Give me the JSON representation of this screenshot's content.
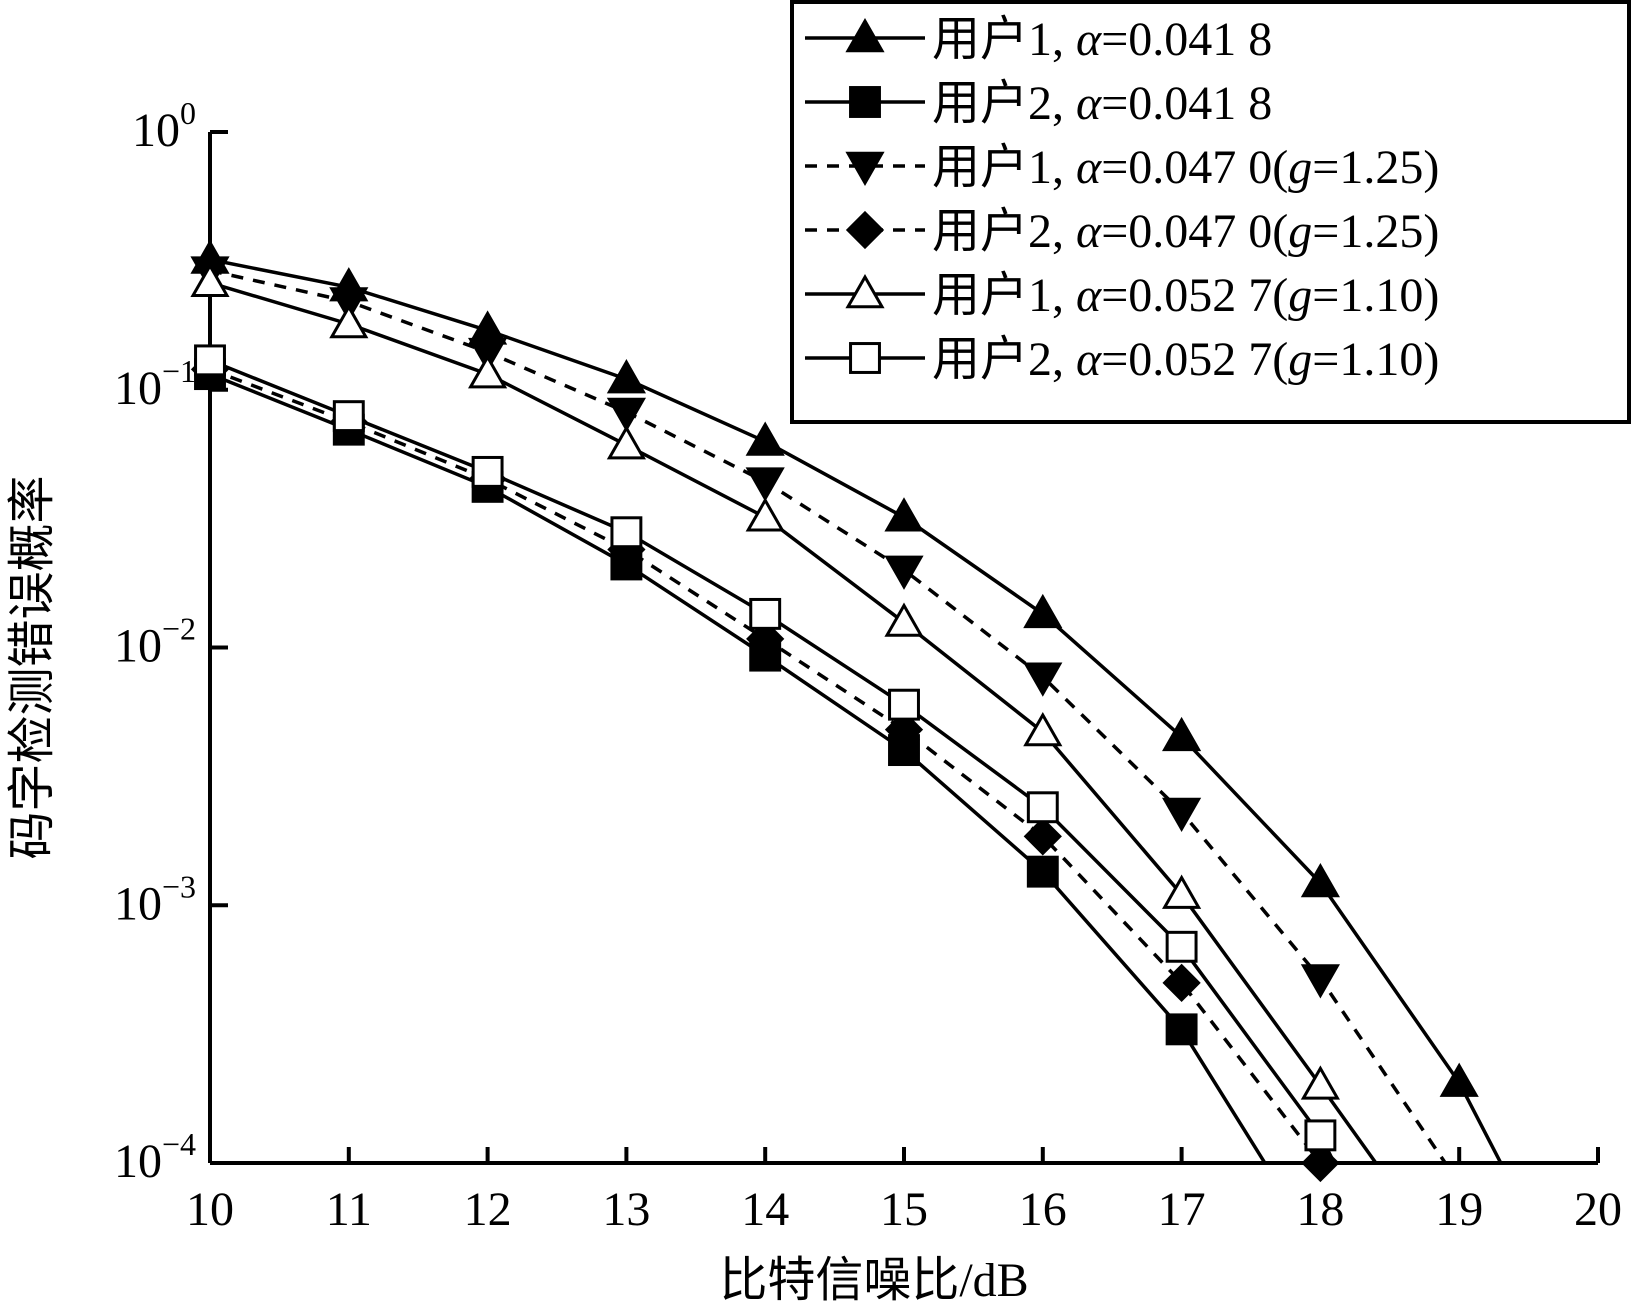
{
  "chart_data": {
    "type": "line",
    "title": "",
    "xlabel": "比特信噪比/dB",
    "ylabel": "码字检测错误概率",
    "x_ticks": [
      "10",
      "11",
      "12",
      "13",
      "14",
      "15",
      "16",
      "17",
      "18",
      "19",
      "20"
    ],
    "xlim": [
      10,
      20
    ],
    "y_scale": "log",
    "ylim": [
      0.0001,
      1
    ],
    "y_ticks": [
      {
        "value": 1,
        "base": "10",
        "exp": "0"
      },
      {
        "value": 0.1,
        "base": "10",
        "exp": "−1"
      },
      {
        "value": 0.01,
        "base": "10",
        "exp": "−2"
      },
      {
        "value": 0.001,
        "base": "10",
        "exp": "−3"
      },
      {
        "value": 0.0001,
        "base": "10",
        "exp": "−4"
      }
    ],
    "grid": false,
    "legend_position": "top-right",
    "series": [
      {
        "name_prefix": "用户1, ",
        "alpha_symbol": "α",
        "alpha_value": "=0.041 8",
        "g_part": "",
        "line": "solid",
        "marker": "triangle-up",
        "filled": true,
        "x": [
          10,
          11,
          12,
          13,
          14,
          15,
          16,
          17,
          18,
          19,
          19.3
        ],
        "y": [
          0.32,
          0.25,
          0.17,
          0.11,
          0.063,
          0.032,
          0.0135,
          0.0045,
          0.00122,
          0.000205,
          0.0001
        ]
      },
      {
        "name_prefix": "用户2, ",
        "alpha_symbol": "α",
        "alpha_value": "=0.041 8",
        "g_part": "",
        "line": "solid",
        "marker": "square",
        "filled": true,
        "x": [
          10,
          11,
          12,
          13,
          14,
          15,
          16,
          17,
          17.6
        ],
        "y": [
          0.115,
          0.07,
          0.042,
          0.021,
          0.0093,
          0.004,
          0.00135,
          0.00033,
          0.0001
        ]
      },
      {
        "name_prefix": "用户1, ",
        "alpha_symbol": "α",
        "alpha_value": "=0.047 0(",
        "g_symbol": "g",
        "g_part": "=1.25)",
        "line": "dashed",
        "marker": "triangle-down",
        "filled": true,
        "x": [
          10,
          11,
          12,
          13,
          14,
          15,
          16,
          17,
          18,
          18.9
        ],
        "y": [
          0.29,
          0.22,
          0.14,
          0.082,
          0.044,
          0.02,
          0.0077,
          0.0023,
          0.00052,
          0.0001
        ]
      },
      {
        "name_prefix": "用户2, ",
        "alpha_symbol": "α",
        "alpha_value": "=0.047 0(",
        "g_symbol": "g",
        "g_part": "=1.25)",
        "line": "dashed",
        "marker": "diamond",
        "filled": true,
        "x": [
          10,
          11,
          12,
          13,
          14,
          15,
          16,
          17,
          18
        ],
        "y": [
          0.12,
          0.075,
          0.045,
          0.024,
          0.0108,
          0.0048,
          0.00185,
          0.0005,
          0.0001
        ]
      },
      {
        "name_prefix": "用户1, ",
        "alpha_symbol": "α",
        "alpha_value": "=0.052 7(",
        "g_symbol": "g",
        "g_part": "=1.10)",
        "line": "solid",
        "marker": "triangle-up",
        "filled": false,
        "x": [
          10,
          11,
          12,
          13,
          14,
          15,
          16,
          17,
          18,
          18.4
        ],
        "y": [
          0.26,
          0.18,
          0.115,
          0.061,
          0.032,
          0.0125,
          0.0047,
          0.0011,
          0.0002,
          0.0001
        ]
      },
      {
        "name_prefix": "用户2, ",
        "alpha_symbol": "α",
        "alpha_value": "=0.052 7(",
        "g_symbol": "g",
        "g_part": "=1.10)",
        "line": "solid",
        "marker": "square",
        "filled": false,
        "x": [
          10,
          11,
          12,
          13,
          14,
          15,
          16,
          17,
          18,
          18.1
        ],
        "y": [
          0.13,
          0.079,
          0.048,
          0.028,
          0.0135,
          0.006,
          0.0024,
          0.00069,
          0.000128,
          0.0001
        ]
      }
    ]
  }
}
